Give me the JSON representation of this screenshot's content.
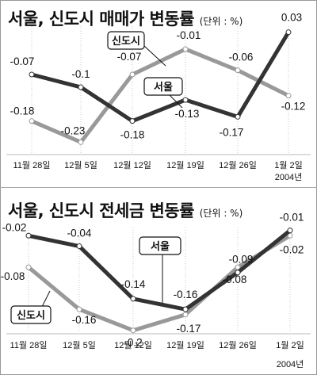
{
  "chart_data": [
    {
      "type": "line",
      "title": "서울, 신도시 매매가 변동률",
      "unit": "(단위 : %)",
      "categories": [
        "11월 28일",
        "12월 5일",
        "12월 12일",
        "12월 19일",
        "12월 26일",
        "1월 2일"
      ],
      "x_extra_label": "2004년",
      "ylim": [
        -0.25,
        0.05
      ],
      "grid": "vertical",
      "series": [
        {
          "name": "서울",
          "color": "#333333",
          "values": [
            -0.07,
            -0.1,
            -0.18,
            -0.13,
            -0.17,
            0.03
          ],
          "labels": [
            "-0.07",
            "-0.1",
            "-0.18",
            "-0.13",
            "-0.17",
            "0.03"
          ]
        },
        {
          "name": "신도시",
          "color": "#999999",
          "values": [
            -0.18,
            -0.23,
            -0.07,
            -0.01,
            -0.06,
            -0.12
          ],
          "labels": [
            "-0.18",
            "-0.23",
            "-0.07",
            "-0.01",
            "-0.06",
            "-0.12"
          ]
        }
      ]
    },
    {
      "type": "line",
      "title": "서울, 신도시 전세금 변동률",
      "unit": "(단위 : %)",
      "categories": [
        "11월 28일",
        "12월 5일",
        "12월 12일",
        "12월 19일",
        "12월 26일",
        "1월 2일"
      ],
      "x_extra_label": "2004년",
      "ylim": [
        -0.22,
        0.0
      ],
      "grid": "vertical",
      "series": [
        {
          "name": "서울",
          "color": "#333333",
          "values": [
            -0.02,
            -0.04,
            -0.14,
            -0.16,
            -0.09,
            -0.01
          ],
          "labels": [
            "-0.02",
            "-0.04",
            "-0.14",
            "-0.16",
            "-0.09",
            "-0.01"
          ]
        },
        {
          "name": "신도시",
          "color": "#999999",
          "values": [
            -0.08,
            -0.16,
            -0.2,
            -0.17,
            -0.08,
            -0.02
          ],
          "labels": [
            "-0.08",
            "-0.16",
            "-0.2",
            "-0.17",
            "-0.08",
            "-0.02"
          ]
        }
      ]
    }
  ]
}
